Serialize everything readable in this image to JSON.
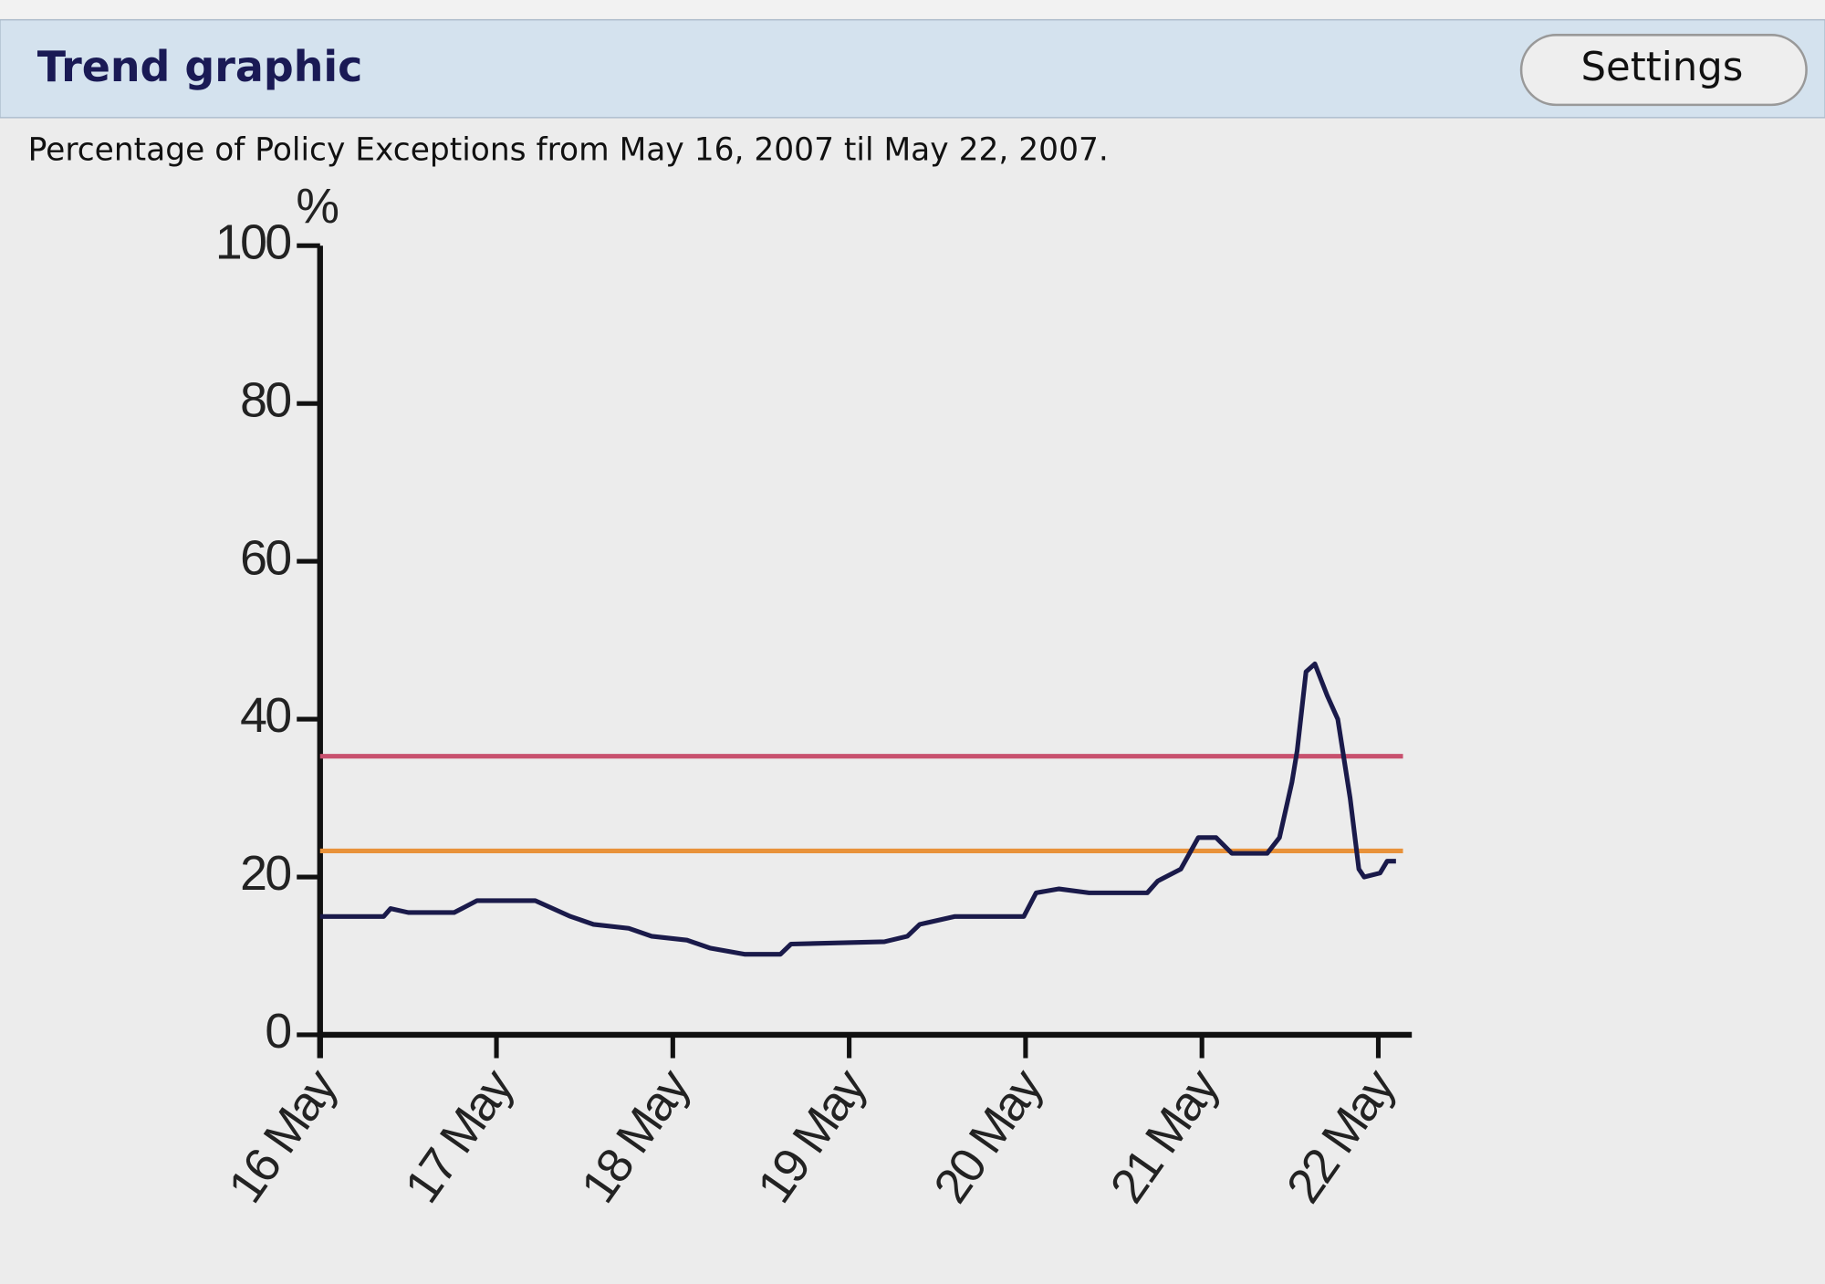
{
  "header": {
    "title": "Trend graphic",
    "button": "Settings"
  },
  "caption": "Percentage of Policy Exceptions from May 16, 2007 til  May 22, 2007.",
  "chart_data": {
    "type": "line",
    "y_label": "%",
    "x": [
      16.0,
      16.36,
      16.4,
      16.5,
      16.76,
      16.89,
      17.22,
      17.42,
      17.55,
      17.75,
      17.88,
      18.08,
      18.21,
      18.41,
      18.61,
      18.67,
      19.2,
      19.33,
      19.4,
      19.6,
      19.99,
      20.06,
      20.19,
      20.36,
      20.69,
      20.75,
      20.88,
      20.98,
      21.08,
      21.17,
      21.37,
      21.44,
      21.51,
      21.54,
      21.59,
      21.64,
      21.71,
      21.77,
      21.84,
      21.89,
      21.92,
      22.01,
      22.05,
      22.1
    ],
    "series": [
      {
        "color": "#1a1a4a",
        "values": [
          15,
          15,
          16,
          15.5,
          15.5,
          17,
          17,
          15,
          14,
          13.5,
          12.5,
          12,
          11,
          10.2,
          10.2,
          11.5,
          11.8,
          12.5,
          14,
          15,
          15,
          18,
          18.5,
          18,
          18,
          19.5,
          21,
          25,
          25,
          23,
          23,
          25,
          32,
          36,
          46,
          47,
          43,
          40,
          30,
          21,
          20,
          20.5,
          22,
          22
        ]
      }
    ],
    "reference_lines": [
      {
        "value": 35.3,
        "color": "#c8506e",
        "end": 22.14
      },
      {
        "value": 23.3,
        "color": "#e8923a",
        "end": 22.14
      }
    ],
    "xlim": [
      16,
      22.19
    ],
    "ylim": [
      0,
      100
    ],
    "xticks": [
      {
        "value": 16,
        "label": "16 May"
      },
      {
        "value": 17,
        "label": "17 May"
      },
      {
        "value": 18,
        "label": "18 May"
      },
      {
        "value": 19,
        "label": "19 May"
      },
      {
        "value": 20,
        "label": "20 May"
      },
      {
        "value": 21,
        "label": "21 May"
      },
      {
        "value": 22,
        "label": "22 May"
      }
    ],
    "yticks": [
      0,
      20,
      40,
      60,
      80,
      100
    ],
    "grid": false
  }
}
